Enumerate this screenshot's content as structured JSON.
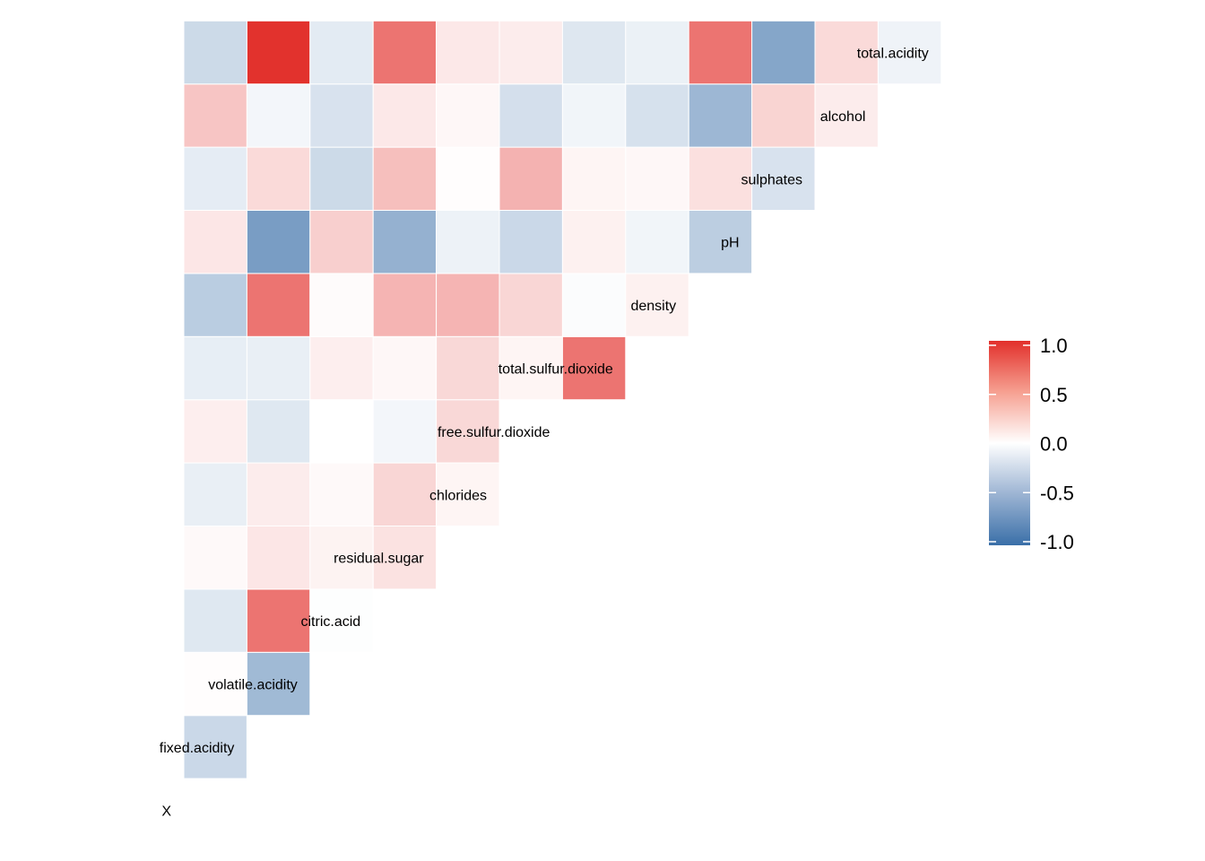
{
  "chart_data": {
    "type": "heatmap",
    "variables": [
      "X",
      "fixed.acidity",
      "volatile.acidity",
      "citric.acid",
      "residual.sugar",
      "chlorides",
      "free.sulfur.dioxide",
      "total.sulfur.dioxide",
      "density",
      "pH",
      "sulphates",
      "alcohol",
      "total.acidity"
    ],
    "lower_triangle_rows": [
      [],
      [
        -0.27
      ],
      [
        0.01,
        -0.48
      ],
      [
        -0.16,
        0.67,
        -0.01
      ],
      [
        0.03,
        0.12,
        0.06,
        0.14
      ],
      [
        -0.11,
        0.09,
        0.03,
        0.2,
        0.05
      ],
      [
        0.08,
        -0.16,
        0.0,
        -0.06,
        0.19,
        0.0
      ],
      [
        -0.12,
        -0.11,
        0.08,
        0.04,
        0.19,
        0.05,
        0.67
      ],
      [
        -0.35,
        0.67,
        0.02,
        0.36,
        0.36,
        0.2,
        -0.02,
        0.07
      ],
      [
        0.12,
        -0.68,
        0.23,
        -0.54,
        -0.09,
        -0.27,
        0.07,
        -0.07,
        -0.34
      ],
      [
        -0.13,
        0.18,
        -0.26,
        0.31,
        0.01,
        0.37,
        0.05,
        0.04,
        0.15,
        -0.2
      ],
      [
        0.28,
        -0.06,
        -0.2,
        0.11,
        0.04,
        -0.22,
        -0.07,
        -0.21,
        -0.5,
        0.21,
        0.09
      ],
      [
        -0.26,
        0.99,
        -0.14,
        0.67,
        0.11,
        0.09,
        -0.17,
        -0.1,
        0.67,
        -0.62,
        0.18,
        -0.08
      ]
    ],
    "legend": {
      "ticks": [
        "1.0",
        "0.5",
        "0.0",
        "-0.5",
        "-1.0"
      ],
      "range": [
        -1,
        1
      ],
      "low_color": "#3A6FA8",
      "mid_color": "#FFFFFF",
      "high_color": "#E2302B",
      "placement": "right"
    },
    "title": "",
    "xlabel": "",
    "ylabel": "",
    "grid": false
  }
}
